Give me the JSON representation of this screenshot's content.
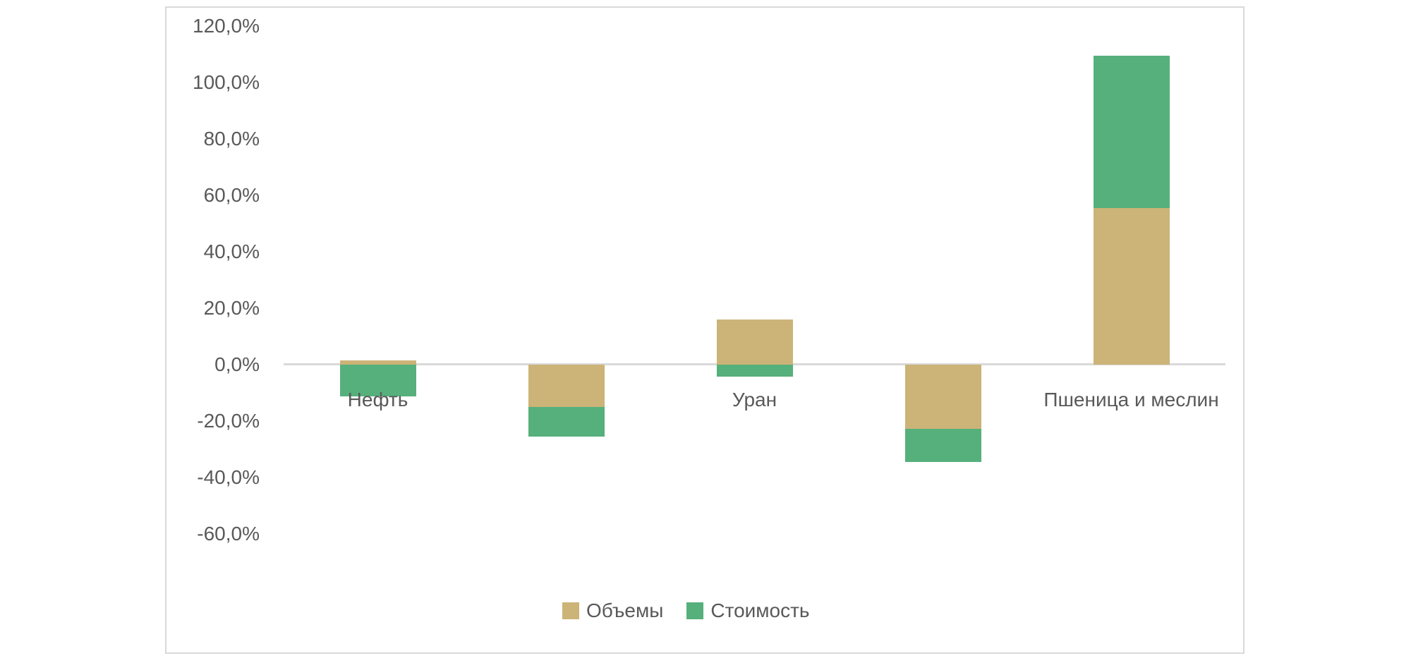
{
  "colors": {
    "series_volumes": "#CCB377",
    "series_value": "#55B07C",
    "axis_line": "#d9d9d9",
    "chart_border": "#d9d9d9",
    "text": "#595959",
    "background": "#ffffff"
  },
  "chart_data": {
    "type": "bar",
    "stacked": true,
    "title": "",
    "xlabel": "",
    "ylabel": "",
    "grid": false,
    "legend_position": "bottom",
    "categories": [
      "Нефть",
      "",
      "Уран",
      "",
      "Пшеница и меслин"
    ],
    "series": [
      {
        "name": "Объемы",
        "color": "#CCB377",
        "values": [
          1.5,
          -15.0,
          16.0,
          -22.8,
          55.5
        ]
      },
      {
        "name": "Стоимость",
        "color": "#55B07C",
        "values": [
          -11.3,
          -10.5,
          -4.3,
          -11.7,
          54.0
        ]
      }
    ],
    "y_ticks": [
      {
        "label": "120,0%",
        "value": 120
      },
      {
        "label": "100,0%",
        "value": 100
      },
      {
        "label": "80,0%",
        "value": 80
      },
      {
        "label": "60,0%",
        "value": 60
      },
      {
        "label": "40,0%",
        "value": 40
      },
      {
        "label": "20,0%",
        "value": 20
      },
      {
        "label": "0,0%",
        "value": 0
      },
      {
        "label": "-20,0%",
        "value": -20
      },
      {
        "label": "-40,0%",
        "value": -40
      },
      {
        "label": "-60,0%",
        "value": -60
      }
    ],
    "ylim": [
      -80,
      125
    ],
    "value_format": "percent-comma-decimal"
  }
}
